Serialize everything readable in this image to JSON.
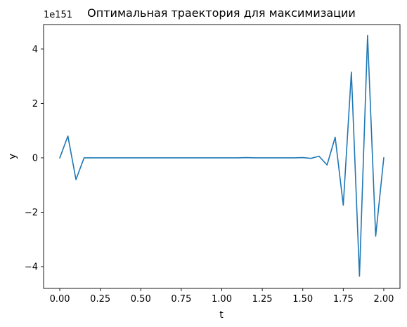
{
  "chart_data": {
    "type": "line",
    "title": "Оптимальная траектория для максимизации",
    "xlabel": "t",
    "ylabel": "y",
    "y_offset_text": "1e151",
    "y_scale": 1e+151,
    "xlim": [
      -0.1,
      2.1
    ],
    "ylim": [
      -4.8,
      4.9
    ],
    "x_ticks": [
      0.0,
      0.25,
      0.5,
      0.75,
      1.0,
      1.25,
      1.5,
      1.75,
      2.0
    ],
    "x_tick_labels": [
      "0.00",
      "0.25",
      "0.50",
      "0.75",
      "1.00",
      "1.25",
      "1.50",
      "1.75",
      "2.00"
    ],
    "y_ticks": [
      -4,
      -2,
      0,
      2,
      4
    ],
    "y_tick_labels": [
      "−4",
      "−2",
      "0",
      "2",
      "4"
    ],
    "grid": false,
    "series_color": "#1f77b4",
    "series": [
      {
        "x": [
          0.0,
          0.05,
          0.1,
          0.15,
          0.2,
          0.25,
          0.3,
          0.35,
          0.4,
          0.45,
          0.5,
          0.55,
          0.6,
          0.65,
          0.7,
          0.75,
          0.8,
          0.85,
          0.9,
          0.95,
          1.0,
          1.05,
          1.1,
          1.15,
          1.2,
          1.25,
          1.3,
          1.35,
          1.4,
          1.45,
          1.5,
          1.55,
          1.6,
          1.65,
          1.7,
          1.75,
          1.8,
          1.85,
          1.9,
          1.95,
          2.0
        ],
        "y": [
          0.0,
          0.8,
          -0.8,
          0.0,
          0.0,
          0.0,
          0.0,
          0.0,
          0.0,
          0.0,
          0.0,
          0.0,
          0.0,
          0.0,
          0.0,
          0.0,
          0.0,
          0.0,
          0.0,
          0.0,
          0.0,
          0.0,
          0.0,
          0.01,
          0.0,
          0.0,
          0.0,
          0.0,
          0.0,
          0.0,
          0.01,
          -0.02,
          0.06,
          -0.26,
          0.76,
          -1.74,
          3.15,
          -4.35,
          4.5,
          -2.88,
          0.0
        ]
      }
    ]
  }
}
